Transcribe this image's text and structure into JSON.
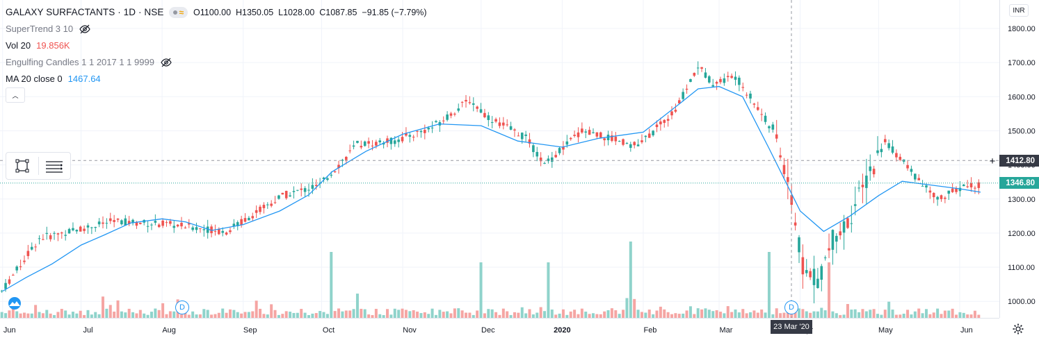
{
  "header": {
    "symbol_title": "GALAXY SURFACTANTS · 1D · NSE",
    "ohlc": {
      "open_label": "O1100.00",
      "high_label": "H1350.05",
      "low_label": "L1028.00",
      "close_label": "C1087.85",
      "change_label": "−91.85 (−7.79%)"
    },
    "indicators": [
      {
        "name": "SuperTrend 3 10",
        "value": "",
        "hidden_icon": "eye-off-icon"
      },
      {
        "name": "Vol 20",
        "value": "19.856K"
      },
      {
        "name": "Engulfing Candles 1 1 2017 1 1 9999",
        "value": "",
        "hidden_icon": "eye-off-icon"
      },
      {
        "name": "MA 20 close 0",
        "value": "1467.64"
      }
    ]
  },
  "currency": "INR",
  "price_badges": {
    "crosshair": "1412.80",
    "last": "1346.80"
  },
  "crosshair_date": "23 Mar '20",
  "dividend_marker": "D",
  "colors": {
    "up": "#26a69a",
    "down": "#ef5350",
    "vol_up": "#8fd3cb",
    "vol_down": "#f5a5a3",
    "ma": "#2196f3",
    "last_price": "#26a69a",
    "crosshair_badge": "#363a45"
  },
  "chart_data": {
    "type": "candlestick",
    "y_axis_ticks": [
      "1800.00",
      "1700.00",
      "1600.00",
      "1500.00",
      "1400.00",
      "1300.00",
      "1200.00",
      "1100.00",
      "1000.00"
    ],
    "x_axis_ticks": [
      "Jun",
      "Jul",
      "Aug",
      "Sep",
      "Oct",
      "Nov",
      "Dec",
      "2020",
      "Feb",
      "Mar",
      "Apr",
      "May",
      "Jun"
    ],
    "ylim": [
      985,
      1830
    ],
    "x_range": [
      "2019-05-31",
      "2020-06-09"
    ],
    "ma_20": [
      {
        "x": "2019-06-01",
        "y": 1030
      },
      {
        "x": "2019-06-10",
        "y": 1070
      },
      {
        "x": "2019-06-20",
        "y": 1110
      },
      {
        "x": "2019-07-01",
        "y": 1165
      },
      {
        "x": "2019-07-10",
        "y": 1195
      },
      {
        "x": "2019-07-20",
        "y": 1230
      },
      {
        "x": "2019-08-01",
        "y": 1242
      },
      {
        "x": "2019-08-10",
        "y": 1233
      },
      {
        "x": "2019-08-20",
        "y": 1208
      },
      {
        "x": "2019-09-01",
        "y": 1225
      },
      {
        "x": "2019-09-15",
        "y": 1265
      },
      {
        "x": "2019-09-26",
        "y": 1312
      },
      {
        "x": "2019-10-05",
        "y": 1380
      },
      {
        "x": "2019-10-18",
        "y": 1440
      },
      {
        "x": "2019-11-01",
        "y": 1490
      },
      {
        "x": "2019-11-15",
        "y": 1520
      },
      {
        "x": "2019-12-01",
        "y": 1515
      },
      {
        "x": "2019-12-15",
        "y": 1470
      },
      {
        "x": "2020-01-01",
        "y": 1452
      },
      {
        "x": "2020-01-15",
        "y": 1478
      },
      {
        "x": "2020-02-01",
        "y": 1496
      },
      {
        "x": "2020-02-15",
        "y": 1580
      },
      {
        "x": "2020-02-22",
        "y": 1623
      },
      {
        "x": "2020-03-01",
        "y": 1630
      },
      {
        "x": "2020-03-10",
        "y": 1600
      },
      {
        "x": "2020-03-20",
        "y": 1450
      },
      {
        "x": "2020-04-01",
        "y": 1265
      },
      {
        "x": "2020-04-10",
        "y": 1205
      },
      {
        "x": "2020-04-20",
        "y": 1250
      },
      {
        "x": "2020-05-01",
        "y": 1310
      },
      {
        "x": "2020-05-10",
        "y": 1352
      },
      {
        "x": "2020-05-20",
        "y": 1342
      },
      {
        "x": "2020-06-01",
        "y": 1330
      },
      {
        "x": "2020-06-09",
        "y": 1320
      }
    ]
  }
}
